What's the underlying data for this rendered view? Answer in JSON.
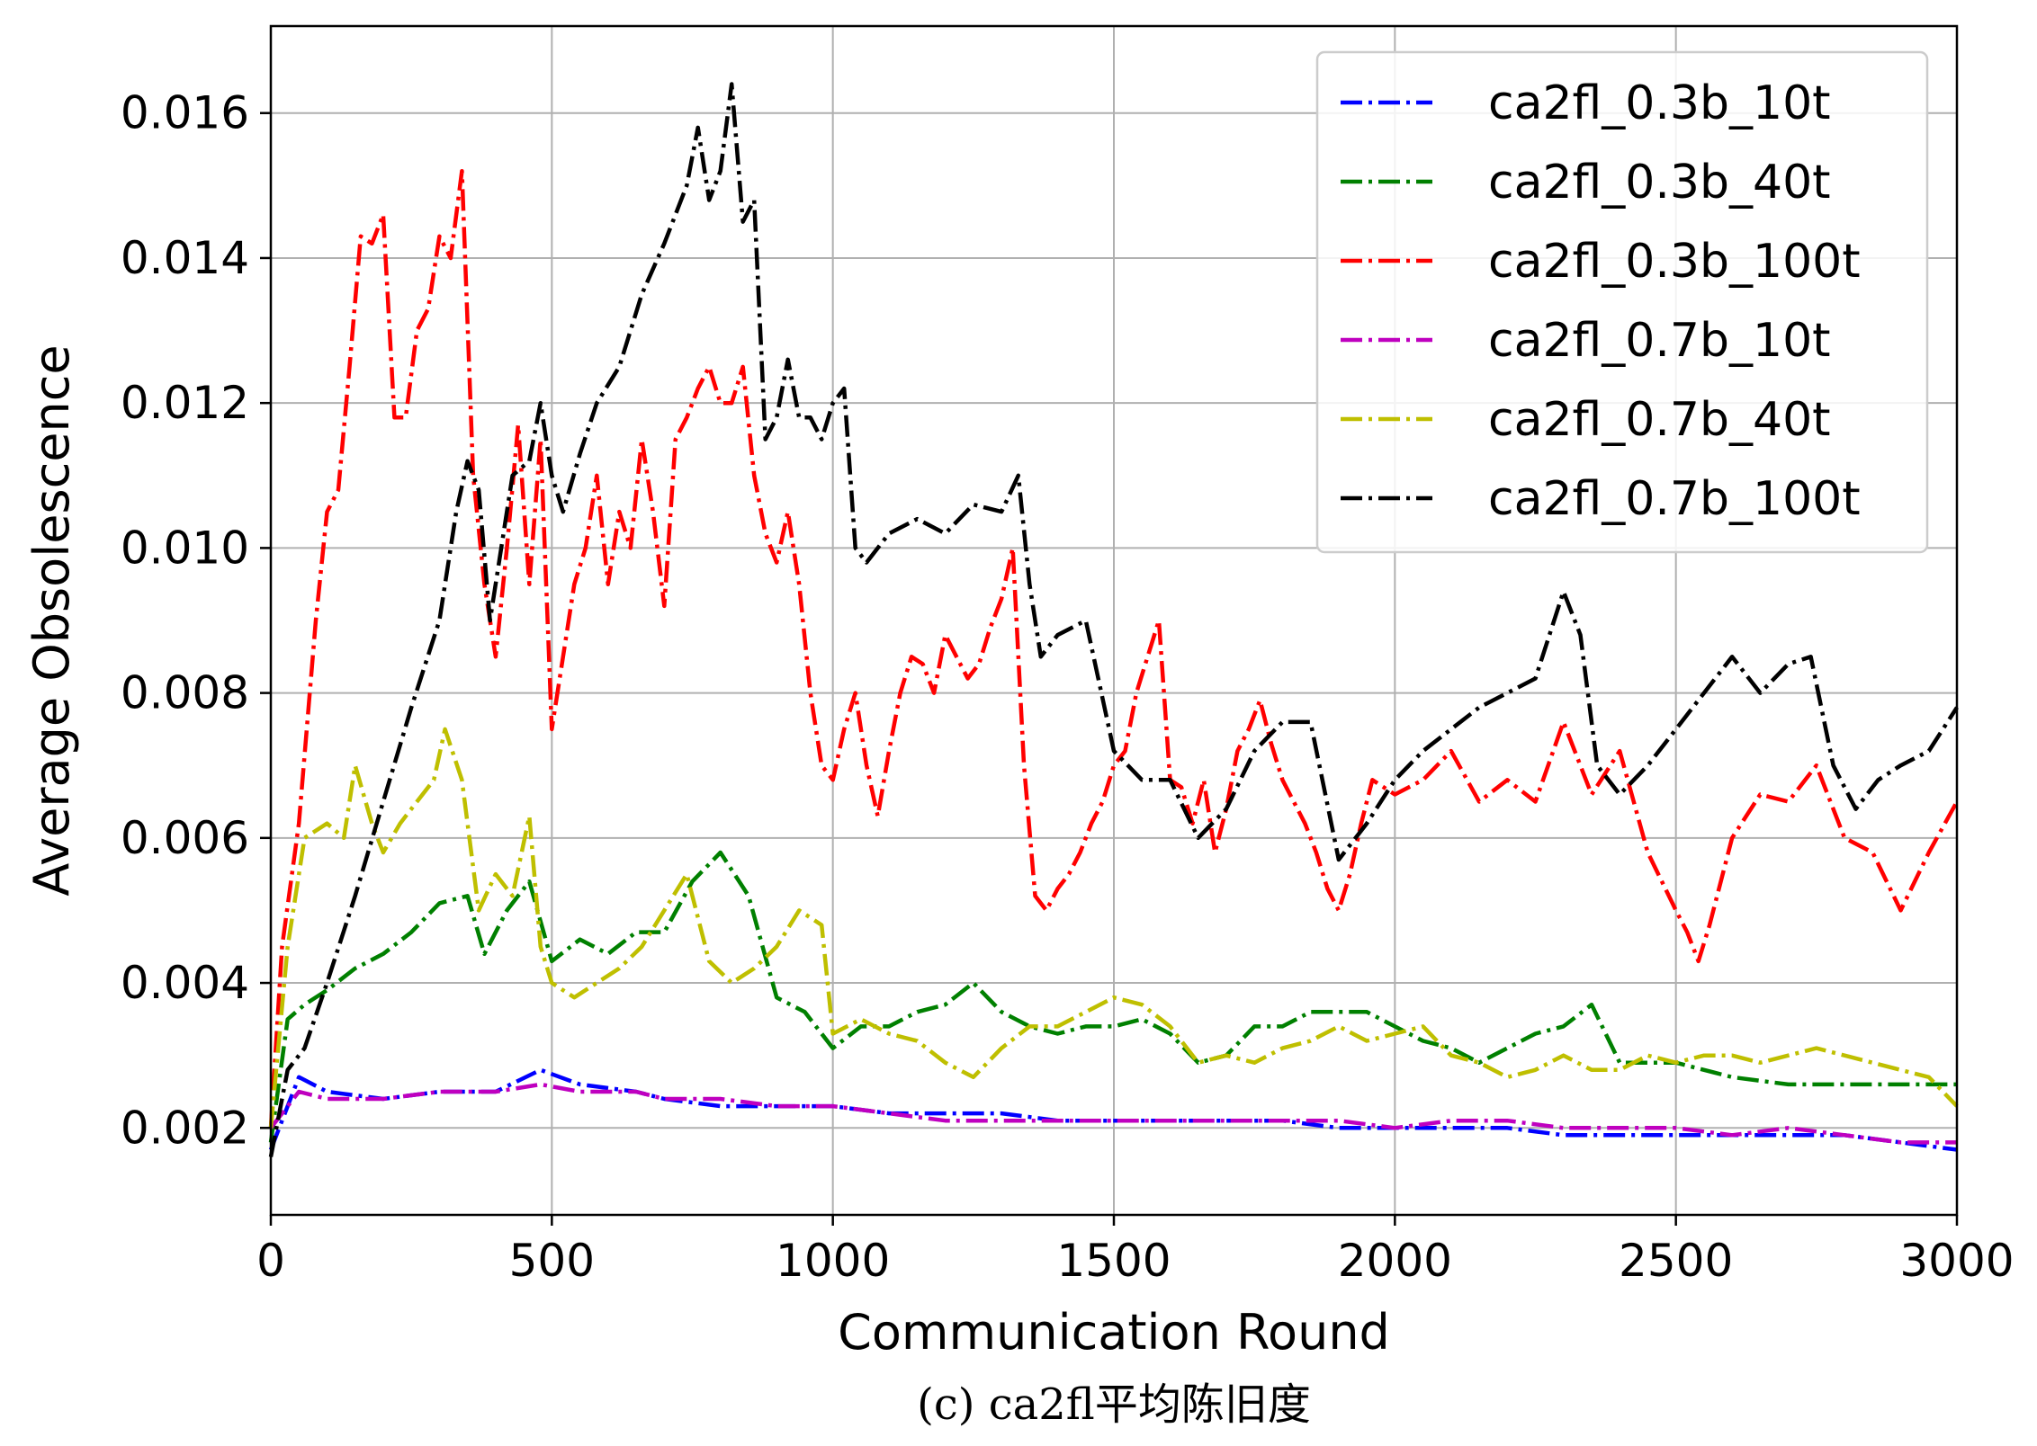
{
  "chart_data": {
    "type": "line",
    "title": "",
    "xlabel": "Communication Round",
    "ylabel": "Average Obsolescence",
    "caption": "(c) ca2fl平均陈旧度",
    "xlim": [
      0,
      3000
    ],
    "ylim": [
      0.0008,
      0.0172
    ],
    "xticks": [
      0,
      500,
      1000,
      1500,
      2000,
      2500,
      3000
    ],
    "yticks": [
      0.002,
      0.004,
      0.006,
      0.008,
      0.01,
      0.012,
      0.014,
      0.016
    ],
    "xtick_labels": [
      "0",
      "500",
      "1000",
      "1500",
      "2000",
      "2500",
      "3000"
    ],
    "ytick_labels": [
      "0.002",
      "0.004",
      "0.006",
      "0.008",
      "0.010",
      "0.012",
      "0.014",
      "0.016"
    ],
    "grid": true,
    "legend_position": "top-right",
    "line_style": "dash-dot",
    "series": [
      {
        "name": "ca2fl_0.3b_10t",
        "color": "#0000ff",
        "x": [
          0,
          50,
          100,
          200,
          300,
          400,
          480,
          550,
          650,
          700,
          800,
          900,
          1000,
          1100,
          1200,
          1300,
          1400,
          1500,
          1600,
          1700,
          1800,
          1900,
          2000,
          2100,
          2200,
          2300,
          2400,
          2500,
          2600,
          2700,
          2800,
          2900,
          3000
        ],
        "y": [
          0.0017,
          0.0027,
          0.0025,
          0.0024,
          0.0025,
          0.0025,
          0.0028,
          0.0026,
          0.0025,
          0.0024,
          0.0023,
          0.0023,
          0.0023,
          0.0022,
          0.0022,
          0.0022,
          0.0021,
          0.0021,
          0.0021,
          0.0021,
          0.0021,
          0.002,
          0.002,
          0.002,
          0.002,
          0.0019,
          0.0019,
          0.0019,
          0.0019,
          0.0019,
          0.0019,
          0.0018,
          0.0017
        ]
      },
      {
        "name": "ca2fl_0.3b_40t",
        "color": "#008000",
        "x": [
          0,
          30,
          60,
          100,
          150,
          200,
          250,
          300,
          350,
          380,
          420,
          460,
          500,
          550,
          600,
          650,
          700,
          750,
          800,
          850,
          900,
          950,
          1000,
          1050,
          1100,
          1150,
          1200,
          1250,
          1300,
          1350,
          1400,
          1450,
          1500,
          1550,
          1600,
          1650,
          1700,
          1750,
          1800,
          1850,
          1900,
          1950,
          2000,
          2050,
          2100,
          2150,
          2200,
          2250,
          2300,
          2350,
          2400,
          2450,
          2500,
          2600,
          2700,
          2800,
          2900,
          3000
        ],
        "y": [
          0.0018,
          0.0035,
          0.0037,
          0.0039,
          0.0042,
          0.0044,
          0.0047,
          0.0051,
          0.0052,
          0.0044,
          0.005,
          0.0054,
          0.0043,
          0.0046,
          0.0044,
          0.0047,
          0.0047,
          0.0054,
          0.0058,
          0.0052,
          0.0038,
          0.0036,
          0.0031,
          0.0034,
          0.0034,
          0.0036,
          0.0037,
          0.004,
          0.0036,
          0.0034,
          0.0033,
          0.0034,
          0.0034,
          0.0035,
          0.0033,
          0.0029,
          0.003,
          0.0034,
          0.0034,
          0.0036,
          0.0036,
          0.0036,
          0.0034,
          0.0032,
          0.0031,
          0.0029,
          0.0031,
          0.0033,
          0.0034,
          0.0037,
          0.0029,
          0.0029,
          0.0029,
          0.0027,
          0.0026,
          0.0026,
          0.0026,
          0.0026
        ]
      },
      {
        "name": "ca2fl_0.3b_100t",
        "color": "#ff0000",
        "x": [
          0,
          20,
          50,
          80,
          100,
          120,
          140,
          160,
          180,
          200,
          220,
          240,
          260,
          280,
          300,
          320,
          340,
          360,
          380,
          400,
          420,
          440,
          460,
          480,
          500,
          520,
          540,
          560,
          580,
          600,
          620,
          640,
          660,
          680,
          700,
          720,
          740,
          760,
          780,
          800,
          820,
          840,
          860,
          880,
          900,
          920,
          940,
          960,
          980,
          1000,
          1020,
          1040,
          1060,
          1080,
          1100,
          1120,
          1140,
          1160,
          1180,
          1200,
          1220,
          1240,
          1260,
          1280,
          1300,
          1320,
          1340,
          1360,
          1380,
          1400,
          1420,
          1440,
          1460,
          1480,
          1500,
          1520,
          1540,
          1560,
          1580,
          1600,
          1620,
          1640,
          1660,
          1680,
          1700,
          1720,
          1740,
          1760,
          1780,
          1800,
          1820,
          1840,
          1860,
          1880,
          1900,
          1920,
          1940,
          1960,
          1980,
          2000,
          2050,
          2100,
          2150,
          2200,
          2250,
          2300,
          2350,
          2400,
          2450,
          2500,
          2520,
          2540,
          2560,
          2600,
          2650,
          2700,
          2750,
          2800,
          2850,
          2900,
          2950,
          3000
        ],
        "y": [
          0.002,
          0.0045,
          0.0062,
          0.009,
          0.0105,
          0.0108,
          0.0125,
          0.0143,
          0.0142,
          0.0146,
          0.0118,
          0.0118,
          0.013,
          0.0133,
          0.0143,
          0.014,
          0.0152,
          0.011,
          0.0095,
          0.0085,
          0.01,
          0.0117,
          0.0095,
          0.0115,
          0.0075,
          0.0085,
          0.0095,
          0.01,
          0.011,
          0.0095,
          0.0105,
          0.01,
          0.0115,
          0.0105,
          0.0092,
          0.0115,
          0.0118,
          0.0122,
          0.0125,
          0.012,
          0.012,
          0.0125,
          0.011,
          0.0102,
          0.0098,
          0.0105,
          0.0095,
          0.008,
          0.007,
          0.0068,
          0.0075,
          0.008,
          0.007,
          0.0063,
          0.0072,
          0.008,
          0.0085,
          0.0084,
          0.008,
          0.0088,
          0.0085,
          0.0082,
          0.0084,
          0.0089,
          0.0093,
          0.01,
          0.007,
          0.0052,
          0.005,
          0.0053,
          0.0055,
          0.0058,
          0.0062,
          0.0065,
          0.007,
          0.0072,
          0.008,
          0.0085,
          0.009,
          0.0068,
          0.0067,
          0.0062,
          0.0068,
          0.0058,
          0.0064,
          0.0072,
          0.0075,
          0.0079,
          0.0073,
          0.0068,
          0.0065,
          0.0062,
          0.0058,
          0.0053,
          0.005,
          0.0055,
          0.0062,
          0.0068,
          0.0067,
          0.0066,
          0.0068,
          0.0072,
          0.0065,
          0.0068,
          0.0065,
          0.0076,
          0.0066,
          0.0072,
          0.0058,
          0.005,
          0.0047,
          0.0043,
          0.0048,
          0.006,
          0.0066,
          0.0065,
          0.007,
          0.006,
          0.0058,
          0.005,
          0.0058,
          0.0065
        ]
      },
      {
        "name": "ca2fl_0.7b_10t",
        "color": "#bf00bf",
        "x": [
          0,
          50,
          100,
          200,
          300,
          400,
          480,
          550,
          650,
          700,
          800,
          900,
          1000,
          1100,
          1200,
          1300,
          1400,
          1500,
          1600,
          1700,
          1800,
          1900,
          2000,
          2100,
          2200,
          2300,
          2400,
          2500,
          2600,
          2700,
          2800,
          2900,
          3000
        ],
        "y": [
          0.002,
          0.0025,
          0.0024,
          0.0024,
          0.0025,
          0.0025,
          0.0026,
          0.0025,
          0.0025,
          0.0024,
          0.0024,
          0.0023,
          0.0023,
          0.0022,
          0.0021,
          0.0021,
          0.0021,
          0.0021,
          0.0021,
          0.0021,
          0.0021,
          0.0021,
          0.002,
          0.0021,
          0.0021,
          0.002,
          0.002,
          0.002,
          0.0019,
          0.002,
          0.0019,
          0.0018,
          0.0018
        ]
      },
      {
        "name": "ca2fl_0.7b_40t",
        "color": "#bfbf00",
        "x": [
          0,
          30,
          60,
          100,
          130,
          150,
          180,
          200,
          230,
          260,
          290,
          310,
          340,
          370,
          400,
          430,
          460,
          480,
          500,
          540,
          580,
          620,
          660,
          700,
          740,
          780,
          820,
          860,
          900,
          940,
          980,
          1000,
          1050,
          1100,
          1150,
          1200,
          1250,
          1300,
          1350,
          1400,
          1450,
          1500,
          1550,
          1600,
          1650,
          1700,
          1750,
          1800,
          1850,
          1900,
          1950,
          2000,
          2050,
          2100,
          2150,
          2200,
          2250,
          2300,
          2350,
          2400,
          2450,
          2500,
          2550,
          2600,
          2650,
          2700,
          2750,
          2800,
          2850,
          2900,
          2950,
          3000
        ],
        "y": [
          0.002,
          0.0045,
          0.006,
          0.0062,
          0.006,
          0.007,
          0.0062,
          0.0058,
          0.0062,
          0.0065,
          0.0068,
          0.0075,
          0.0068,
          0.005,
          0.0055,
          0.0052,
          0.0063,
          0.0045,
          0.004,
          0.0038,
          0.004,
          0.0042,
          0.0045,
          0.005,
          0.0055,
          0.0043,
          0.004,
          0.0042,
          0.0045,
          0.005,
          0.0048,
          0.0033,
          0.0035,
          0.0033,
          0.0032,
          0.0029,
          0.0027,
          0.0031,
          0.0034,
          0.0034,
          0.0036,
          0.0038,
          0.0037,
          0.0034,
          0.0029,
          0.003,
          0.0029,
          0.0031,
          0.0032,
          0.0034,
          0.0032,
          0.0033,
          0.0034,
          0.003,
          0.0029,
          0.0027,
          0.0028,
          0.003,
          0.0028,
          0.0028,
          0.003,
          0.0029,
          0.003,
          0.003,
          0.0029,
          0.003,
          0.0031,
          0.003,
          0.0029,
          0.0028,
          0.0027,
          0.0023
        ]
      },
      {
        "name": "ca2fl_0.7b_100t",
        "color": "#000000",
        "x": [
          0,
          30,
          60,
          100,
          150,
          200,
          250,
          300,
          330,
          350,
          370,
          390,
          410,
          430,
          460,
          480,
          500,
          520,
          550,
          580,
          620,
          660,
          700,
          740,
          760,
          780,
          800,
          820,
          840,
          860,
          880,
          900,
          920,
          940,
          960,
          980,
          1000,
          1020,
          1040,
          1060,
          1080,
          1100,
          1150,
          1200,
          1250,
          1300,
          1330,
          1350,
          1370,
          1400,
          1450,
          1500,
          1550,
          1600,
          1650,
          1700,
          1750,
          1800,
          1850,
          1900,
          1950,
          2000,
          2050,
          2100,
          2150,
          2200,
          2250,
          2300,
          2330,
          2360,
          2400,
          2450,
          2500,
          2550,
          2600,
          2650,
          2700,
          2740,
          2780,
          2820,
          2860,
          2900,
          2950,
          3000
        ],
        "y": [
          0.0016,
          0.0028,
          0.0031,
          0.004,
          0.0052,
          0.0065,
          0.0078,
          0.009,
          0.0105,
          0.0112,
          0.0108,
          0.009,
          0.01,
          0.011,
          0.0112,
          0.012,
          0.011,
          0.0105,
          0.0113,
          0.012,
          0.0125,
          0.0135,
          0.0142,
          0.015,
          0.0158,
          0.0148,
          0.0152,
          0.0164,
          0.0145,
          0.0148,
          0.0115,
          0.0118,
          0.0126,
          0.0118,
          0.0118,
          0.0115,
          0.012,
          0.0122,
          0.01,
          0.0098,
          0.01,
          0.0102,
          0.0104,
          0.0102,
          0.0106,
          0.0105,
          0.011,
          0.0095,
          0.0085,
          0.0088,
          0.009,
          0.0072,
          0.0068,
          0.0068,
          0.006,
          0.0064,
          0.0072,
          0.0076,
          0.0076,
          0.0057,
          0.0062,
          0.0068,
          0.0072,
          0.0075,
          0.0078,
          0.008,
          0.0082,
          0.0094,
          0.0088,
          0.007,
          0.0066,
          0.007,
          0.0075,
          0.008,
          0.0085,
          0.008,
          0.0084,
          0.0085,
          0.007,
          0.0064,
          0.0068,
          0.007,
          0.0072,
          0.0078
        ]
      }
    ]
  }
}
